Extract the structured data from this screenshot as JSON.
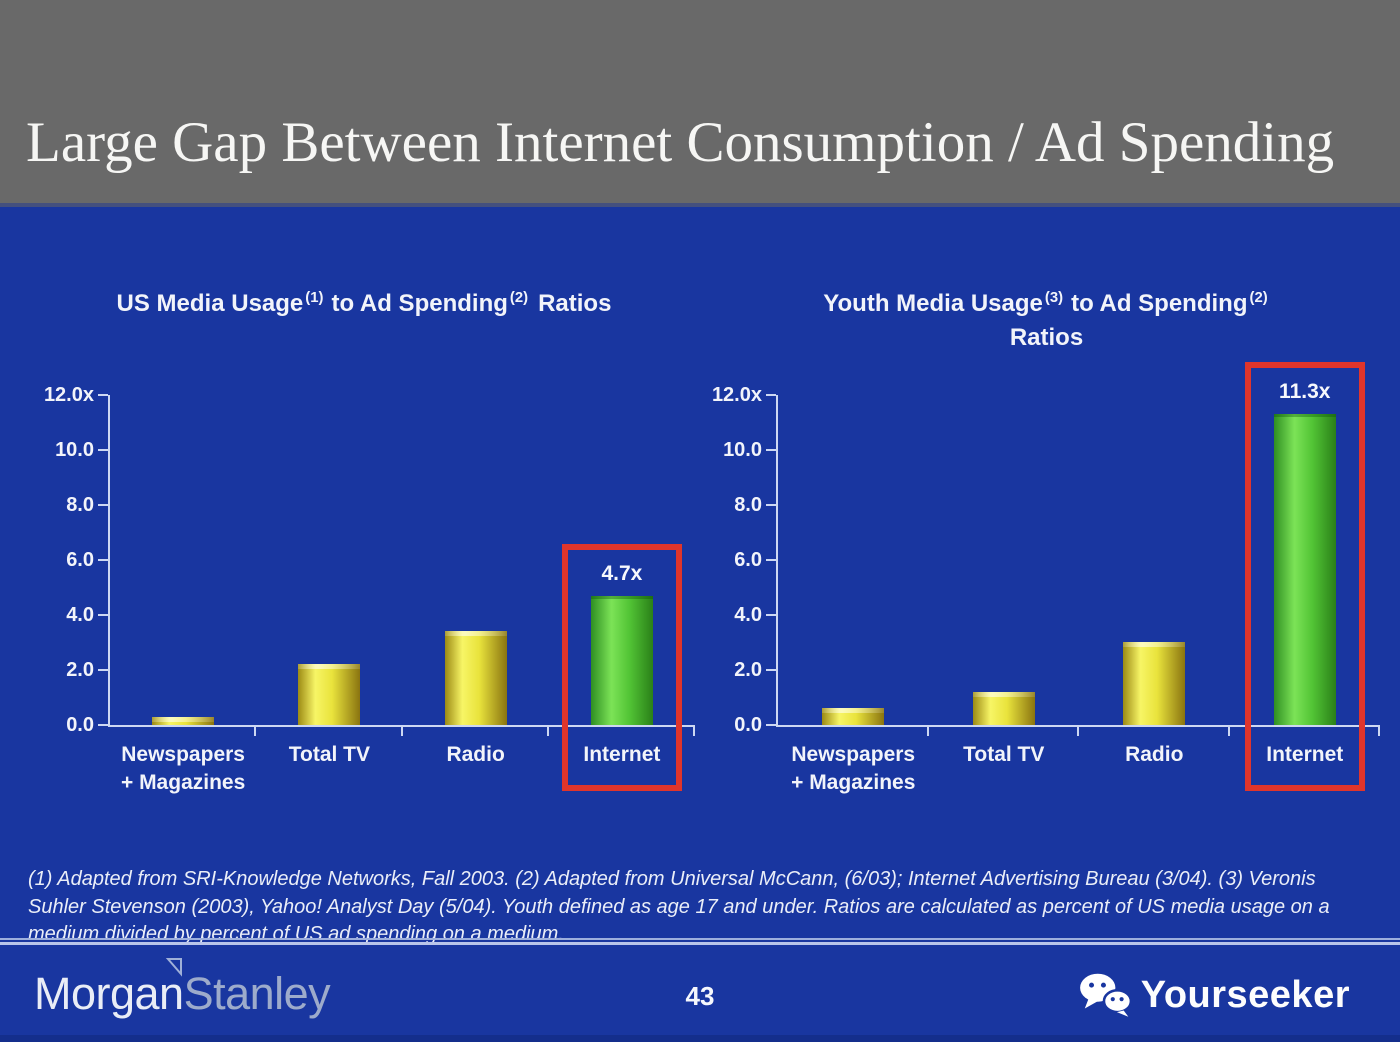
{
  "header": {
    "title": "Large Gap Between Internet Consumption / Ad Spending"
  },
  "footnote": "(1) Adapted from SRI-Knowledge Networks, Fall 2003.  (2) Adapted from Universal McCann, (6/03); Internet Advertising Bureau (3/04). (3) Veronis Suhler Stevenson (2003), Yahoo! Analyst Day (5/04).  Youth defined as age 17 and under.  Ratios are calculated as percent of US media usage on a medium divided by percent of US ad spending on a medium.",
  "footer": {
    "page_number": "43",
    "brand": {
      "word1": "Morgan",
      "word2": "Stanley",
      "flag_icon": "pennant-triangle-icon"
    },
    "watermark": {
      "label": "Yourseeker",
      "icon": "wechat-icon"
    }
  },
  "colors": {
    "background": "#1936A0",
    "header_bg": "#696969",
    "axis": "#CDD8F2",
    "bar_yellow": "#E9E33C",
    "bar_green": "#52C435",
    "highlight_box_red": "#E0352B",
    "text": "#F2F4FA"
  },
  "chart_data": [
    {
      "type": "bar",
      "title": "US Media Usage (1) to Ad Spending (2) Ratios",
      "title_parts": {
        "pre": "US Media Usage",
        "sup1": "(1)",
        "mid": "to Ad Spending",
        "sup2": "(2)",
        "post": "Ratios"
      },
      "categories": [
        "Newspapers + Magazines",
        "Total TV",
        "Radio",
        "Internet"
      ],
      "category_lines": [
        [
          "Newspapers",
          "+ Magazines"
        ],
        [
          "Total TV"
        ],
        [
          "Radio"
        ],
        [
          "Internet"
        ]
      ],
      "values": [
        0.3,
        2.2,
        3.4,
        4.7
      ],
      "highlight_index": 3,
      "highlight_label": "4.7x",
      "ylim": [
        0,
        12
      ],
      "yticks": [
        {
          "v": 12,
          "label": "12.0x"
        },
        {
          "v": 10,
          "label": "10.0"
        },
        {
          "v": 8,
          "label": "8.0"
        },
        {
          "v": 6,
          "label": "6.0"
        },
        {
          "v": 4,
          "label": "4.0"
        },
        {
          "v": 2,
          "label": "2.0"
        },
        {
          "v": 0,
          "label": "0.0"
        }
      ],
      "grid": false,
      "legend": false
    },
    {
      "type": "bar",
      "title": "Youth Media Usage (3) to Ad Spending (2) Ratios",
      "title_parts": {
        "pre": "Youth Media Usage",
        "sup1": "(3)",
        "mid": "to Ad Spending",
        "sup2": "(2)",
        "post": "Ratios"
      },
      "categories": [
        "Newspapers + Magazines",
        "Total TV",
        "Radio",
        "Internet"
      ],
      "category_lines": [
        [
          "Newspapers",
          "+ Magazines"
        ],
        [
          "Total TV"
        ],
        [
          "Radio"
        ],
        [
          "Internet"
        ]
      ],
      "values": [
        0.6,
        1.2,
        3.0,
        11.3
      ],
      "highlight_index": 3,
      "highlight_label": "11.3x",
      "ylim": [
        0,
        12
      ],
      "yticks": [
        {
          "v": 12,
          "label": "12.0x"
        },
        {
          "v": 10,
          "label": "10.0"
        },
        {
          "v": 8,
          "label": "8.0"
        },
        {
          "v": 6,
          "label": "6.0"
        },
        {
          "v": 4,
          "label": "4.0"
        },
        {
          "v": 2,
          "label": "2.0"
        },
        {
          "v": 0,
          "label": "0.0"
        }
      ],
      "grid": false,
      "legend": false
    }
  ]
}
